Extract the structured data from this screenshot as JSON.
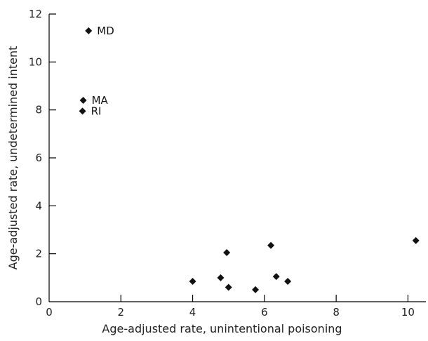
{
  "chart_data": {
    "type": "scatter",
    "title": "",
    "xlabel": "Age-adjusted rate, unintentional poisoning",
    "ylabel": "Age-adjusted rate, undetermined intent",
    "xlim": [
      0,
      10.5
    ],
    "ylim": [
      0,
      12
    ],
    "xticks": [
      0,
      2,
      4,
      6,
      8,
      10
    ],
    "yticks": [
      0,
      2,
      4,
      6,
      8,
      10,
      12
    ],
    "grid": false,
    "marker": "diamond",
    "points": [
      {
        "x": 1.1,
        "y": 11.3,
        "label": "MD"
      },
      {
        "x": 0.95,
        "y": 8.4,
        "label": "MA"
      },
      {
        "x": 0.93,
        "y": 7.95,
        "label": "RI"
      },
      {
        "x": 4.0,
        "y": 0.85,
        "label": ""
      },
      {
        "x": 4.78,
        "y": 1.0,
        "label": ""
      },
      {
        "x": 4.95,
        "y": 2.05,
        "label": ""
      },
      {
        "x": 5.0,
        "y": 0.6,
        "label": ""
      },
      {
        "x": 5.75,
        "y": 0.5,
        "label": ""
      },
      {
        "x": 6.18,
        "y": 2.35,
        "label": ""
      },
      {
        "x": 6.33,
        "y": 1.05,
        "label": ""
      },
      {
        "x": 6.65,
        "y": 0.85,
        "label": ""
      },
      {
        "x": 10.22,
        "y": 2.55,
        "label": ""
      }
    ]
  }
}
